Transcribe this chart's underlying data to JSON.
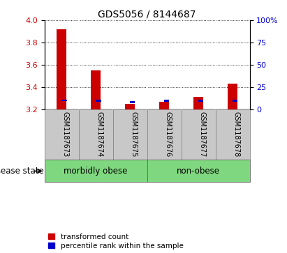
{
  "title": "GDS5056 / 8144687",
  "samples": [
    "GSM1187673",
    "GSM1187674",
    "GSM1187675",
    "GSM1187676",
    "GSM1187677",
    "GSM1187678"
  ],
  "red_values": [
    3.92,
    3.55,
    3.245,
    3.268,
    3.31,
    3.43
  ],
  "blue_values": [
    3.27,
    3.265,
    3.255,
    3.265,
    3.265,
    3.265
  ],
  "ylim_left": [
    3.2,
    4.0
  ],
  "ylim_right": [
    0,
    100
  ],
  "yticks_left": [
    3.2,
    3.4,
    3.6,
    3.8,
    4.0
  ],
  "yticks_right": [
    0,
    25,
    50,
    75,
    100
  ],
  "ytick_labels_right": [
    "0",
    "25",
    "50",
    "75",
    "100%"
  ],
  "groups": [
    {
      "label": "morbidly obese",
      "indices": [
        0,
        1,
        2
      ],
      "color": "#7FD87F"
    },
    {
      "label": "non-obese",
      "indices": [
        3,
        4,
        5
      ],
      "color": "#7FD87F"
    }
  ],
  "disease_state_label": "disease state",
  "legend_red": "transformed count",
  "legend_blue": "percentile rank within the sample",
  "bar_bg_color": "#c8c8c8",
  "red_color": "#cc0000",
  "blue_color": "#0000cc",
  "baseline": 3.2,
  "title_fontsize": 10,
  "tick_fontsize": 8,
  "label_fontsize": 8.5,
  "sample_fontsize": 7
}
